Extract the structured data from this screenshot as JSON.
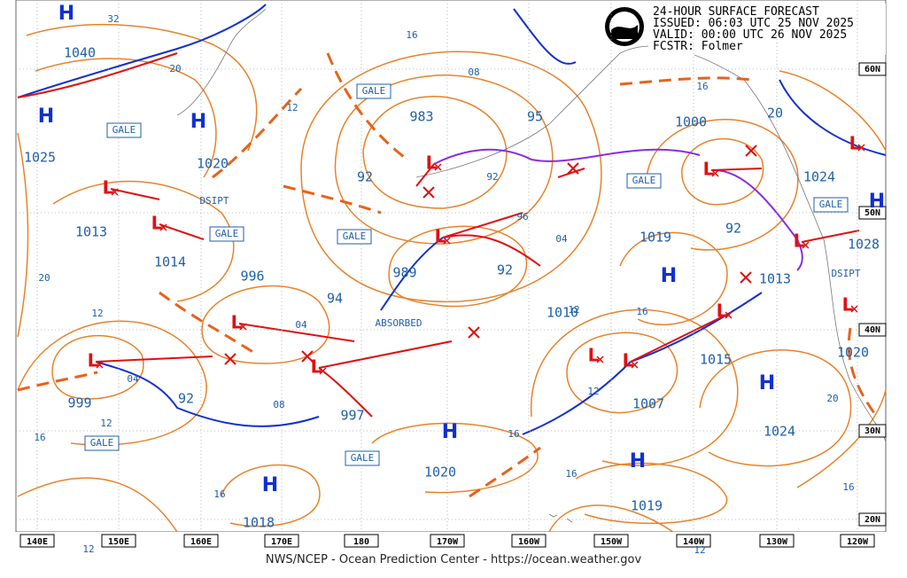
{
  "header": {
    "lines": [
      "24-HOUR SURFACE FORECAST",
      "ISSUED: 06:03 UTC 25 NOV 2025",
      "VALID:  00:00 UTC 26 NOV 2025",
      "FCSTR:  Folmer"
    ]
  },
  "footer": "NWS/NCEP - Ocean Prediction Center - https://ocean.weather.gov",
  "longitude_labels": [
    "140E",
    "150E",
    "160E",
    "170E",
    "180",
    "170W",
    "160W",
    "150W",
    "140W",
    "130W",
    "120W"
  ],
  "latitude_labels": [
    "60N",
    "50N",
    "40N",
    "30N",
    "20N"
  ],
  "pressure_labels": [
    "1040",
    "1025",
    "1020",
    "1013",
    "1014",
    "996",
    "999",
    "92",
    "94",
    "997",
    "983",
    "95",
    "92",
    "989",
    "92",
    "1000",
    "20",
    "1024",
    "92",
    "1019",
    "1028",
    "1013",
    "1015",
    "1020",
    "1007",
    "1024",
    "1020",
    "1019",
    "1018",
    "1010"
  ],
  "isobar_labels": [
    "32",
    "20",
    "12",
    "16",
    "08",
    "16",
    "92",
    "96",
    "04",
    "04",
    "04",
    "12",
    "20",
    "12",
    "16",
    "08",
    "16",
    "12",
    "12",
    "16",
    "16",
    "20",
    "16",
    "16",
    "12",
    "12"
  ],
  "highs": [
    "H",
    "H",
    "H",
    "H",
    "H",
    "H",
    "H",
    "H",
    "H"
  ],
  "lows": [
    "L",
    "L",
    "L",
    "L",
    "L",
    "L",
    "L",
    "L",
    "L",
    "L",
    "L",
    "L",
    "L",
    "L"
  ],
  "annotations": {
    "gale": [
      "GALE",
      "GALE",
      "GALE",
      "GALE",
      "GALE",
      "GALE",
      "GALE",
      "GALE"
    ],
    "dsipt": [
      "DSIPT",
      "DSIPT"
    ],
    "absorbed": "ABSORBED"
  }
}
